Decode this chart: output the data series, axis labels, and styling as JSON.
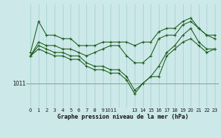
{
  "title": "Graphe pression niveau de la mer (hPa)",
  "background_color": "#cce8e8",
  "line_color": "#1a5c1a",
  "grid_color": "#aad4d4",
  "ylabel_value": 1011,
  "ylim": [
    1004,
    1034
  ],
  "xlim": [
    -0.5,
    23.5
  ],
  "x_tick_positions": [
    0,
    1,
    2,
    3,
    4,
    5,
    6,
    7,
    8,
    9,
    10,
    11,
    13,
    14,
    15,
    16,
    17,
    18,
    19,
    20,
    21,
    22,
    23
  ],
  "x_tick_labels": [
    "0",
    "1",
    "2",
    "3",
    "4",
    "5",
    "6",
    "7",
    "8",
    "9",
    "1011",
    "",
    "13",
    "14",
    "15",
    "16",
    "17",
    "18",
    "19",
    "20",
    "21",
    "22",
    "23"
  ],
  "series": [
    [
      1020,
      1029,
      1025,
      1025,
      1024,
      1024,
      1022,
      1022,
      1022,
      1023,
      1023,
      1023,
      1023,
      1022,
      1023,
      1023,
      1026,
      1027,
      1027,
      1029,
      1030,
      1027,
      1025,
      1025
    ],
    [
      1019,
      1023,
      1022,
      1022,
      1021,
      1021,
      1020,
      1019,
      1020,
      1021,
      1022,
      1022,
      1019,
      1017,
      1017,
      1019,
      1024,
      1025,
      1025,
      1028,
      1029,
      1027,
      1025,
      1024
    ],
    [
      1019,
      1022,
      1021,
      1020,
      1020,
      1019,
      1019,
      1017,
      1016,
      1016,
      1015,
      1015,
      1013,
      1009,
      1011,
      1013,
      1016,
      1020,
      1022,
      1025,
      1027,
      1023,
      1021,
      1021
    ],
    [
      1019,
      1021,
      1020,
      1019,
      1019,
      1018,
      1018,
      1016,
      1015,
      1015,
      1014,
      1014,
      1012,
      1008,
      1011,
      1013,
      1013,
      1019,
      1021,
      1023,
      1024,
      1022,
      1020,
      1021
    ]
  ],
  "figsize": [
    3.2,
    2.0
  ],
  "dpi": 100
}
